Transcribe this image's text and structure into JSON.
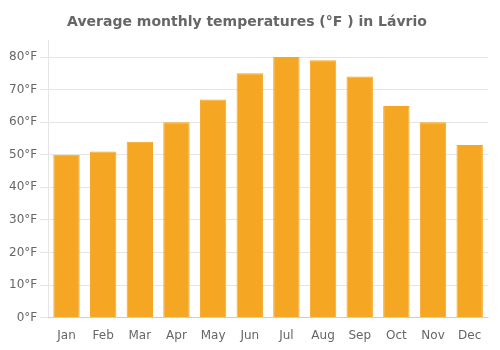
{
  "chart_data": {
    "type": "bar",
    "title": "Average monthly temperatures (°F ) in Lávrio",
    "categories": [
      "Jan",
      "Feb",
      "Mar",
      "Apr",
      "May",
      "Jun",
      "Jul",
      "Aug",
      "Sep",
      "Oct",
      "Nov",
      "Dec"
    ],
    "values": [
      50,
      51,
      54,
      60,
      67,
      75,
      80,
      79,
      74,
      65,
      60,
      53
    ],
    "color": "#F5A623",
    "ylim": [
      0,
      85
    ],
    "yticks": [
      {
        "value": 0,
        "label": "0°F"
      },
      {
        "value": 10,
        "label": "10°F"
      },
      {
        "value": 20,
        "label": "20°F"
      },
      {
        "value": 30,
        "label": "30°F"
      },
      {
        "value": 40,
        "label": "40°F"
      },
      {
        "value": 50,
        "label": "50°F"
      },
      {
        "value": 60,
        "label": "60°F"
      },
      {
        "value": 70,
        "label": "70°F"
      },
      {
        "value": 80,
        "label": "80°F"
      }
    ],
    "grid": true
  }
}
